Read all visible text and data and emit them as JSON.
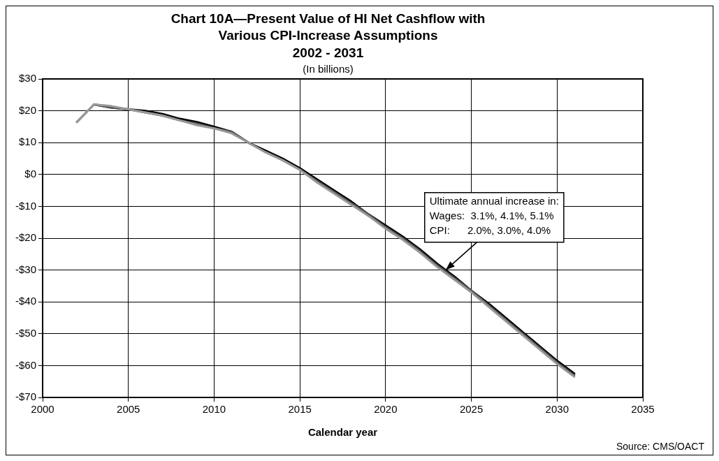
{
  "chart_data": {
    "type": "line",
    "title": "Chart 10A—Present Value of HI Net Cashflow with\nVarious CPI-Increase Assumptions\n2002 - 2031",
    "subtitle": "(In billions)",
    "xlabel": "Calendar year",
    "x": [
      2002,
      2003,
      2004,
      2005,
      2006,
      2007,
      2008,
      2009,
      2010,
      2011,
      2012,
      2013,
      2014,
      2015,
      2016,
      2017,
      2018,
      2019,
      2020,
      2021,
      2022,
      2023,
      2024,
      2025,
      2026,
      2027,
      2028,
      2029,
      2030,
      2031
    ],
    "series": [
      {
        "color": "#000000",
        "values": [
          null,
          22,
          21,
          20.5,
          20,
          19,
          17.5,
          16.5,
          15,
          13.5,
          10,
          7.5,
          5,
          2,
          -1.5,
          -5,
          -8.5,
          -12.5,
          -16,
          -19.5,
          -23.5,
          -28,
          -32,
          -36.5,
          -40.5,
          -45,
          -49.5,
          -54,
          -58.5,
          -62.5
        ]
      },
      {
        "color": "#555555",
        "values": [
          16.5,
          22,
          21,
          20.5,
          19.5,
          18.5,
          17,
          16,
          14.5,
          13.5,
          10,
          7,
          4.5,
          1.5,
          -2,
          -5.5,
          -9,
          -12.5,
          -16.5,
          -20,
          -24,
          -28.5,
          -32.5,
          -36.5,
          -41,
          -45.5,
          -50,
          -54.5,
          -59,
          -63
        ]
      },
      {
        "color": "#999999",
        "values": [
          16.5,
          22,
          21.5,
          20.5,
          19.5,
          18.5,
          17,
          15.5,
          14.5,
          13,
          10,
          7,
          4.5,
          1.5,
          -2.5,
          -6,
          -9.5,
          -13,
          -17,
          -20.5,
          -24.5,
          -29,
          -33,
          -37,
          -41.5,
          -46,
          -50.5,
          -55,
          -59.5,
          -63.5
        ]
      }
    ],
    "xlim": [
      2000,
      2035
    ],
    "xticks": [
      2000,
      2005,
      2010,
      2015,
      2020,
      2025,
      2030,
      2035
    ],
    "ylim": [
      -70,
      30
    ],
    "yticks": [
      {
        "value": 30,
        "label": "$30"
      },
      {
        "value": 20,
        "label": "$20"
      },
      {
        "value": 10,
        "label": "$10"
      },
      {
        "value": 0,
        "label": "$0"
      },
      {
        "value": -10,
        "label": "-$10"
      },
      {
        "value": -20,
        "label": "-$20"
      },
      {
        "value": -30,
        "label": "-$30"
      },
      {
        "value": -40,
        "label": "-$40"
      },
      {
        "value": -50,
        "label": "-$50"
      },
      {
        "value": -60,
        "label": "-$60"
      },
      {
        "value": -70,
        "label": "-$70"
      }
    ],
    "grid": true,
    "legend": false,
    "marker": "none",
    "line_style": "solid",
    "annotations": [
      {
        "text": "Ultimate annual increase in:\nWages:  3.1%, 4.1%, 5.1%\nCPI:      2.0%, 3.0%, 4.0%",
        "x": 2023.5,
        "y": -30
      },
      "Source: CMS/OACT"
    ]
  }
}
